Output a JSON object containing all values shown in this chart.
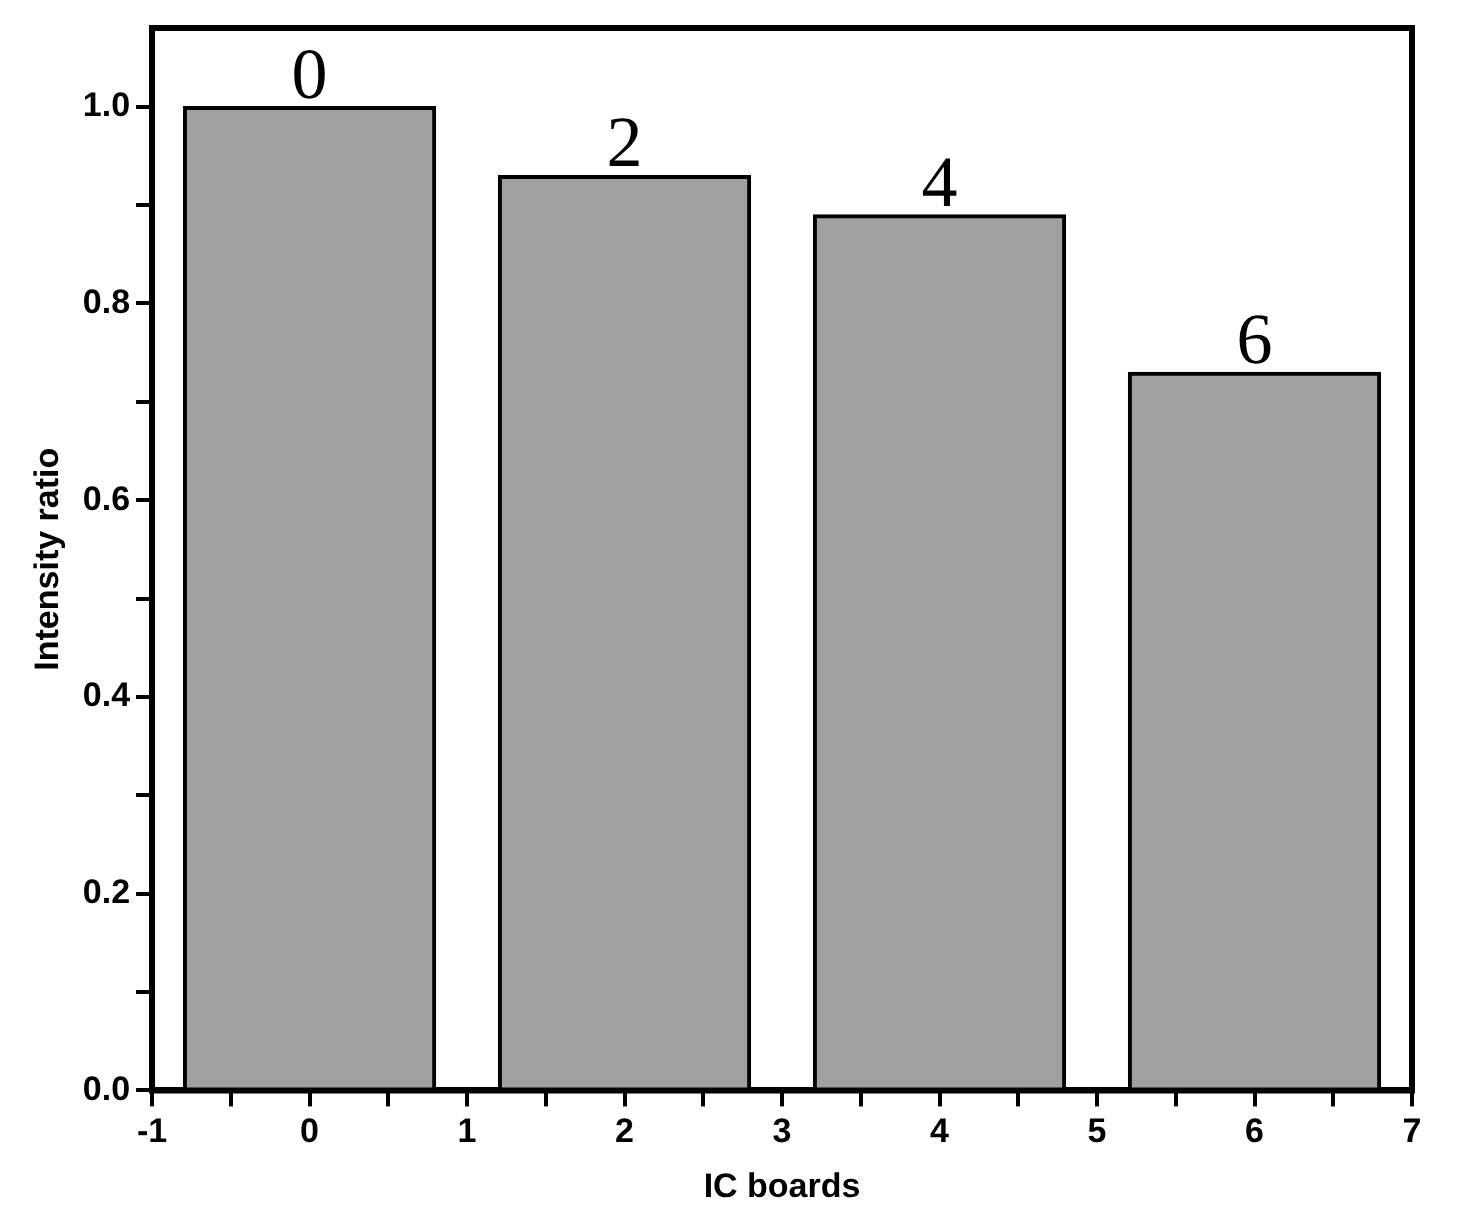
{
  "chart_data": {
    "type": "bar",
    "xlabel": "IC boards",
    "ylabel": "Intensity ratio",
    "x": [
      0,
      2,
      4,
      6
    ],
    "values": [
      1.0,
      0.93,
      0.89,
      0.73
    ],
    "color": "#a0a0a0",
    "xlim": [
      -1,
      7
    ],
    "xticks": [
      -1,
      {
        "value": -0.5,
        "label": null
      },
      0,
      {
        "value": 0.5,
        "label": null
      },
      1,
      {
        "value": 1.5,
        "label": null
      },
      2,
      {
        "value": 2.5,
        "label": null
      },
      3,
      {
        "value": 3.5,
        "label": null
      },
      4,
      {
        "value": 4.5,
        "label": null
      },
      5,
      {
        "value": 5.5,
        "label": null
      },
      6,
      {
        "value": 6.5,
        "label": null
      },
      7
    ],
    "ylim": [
      0,
      1.08
    ],
    "yticks": [
      {
        "value": 0,
        "label": "0.0"
      },
      {
        "value": 0.1,
        "label": null
      },
      0.2,
      {
        "value": 0.3,
        "label": null
      },
      0.4,
      {
        "value": 0.5,
        "label": null
      },
      0.6,
      {
        "value": 0.7,
        "label": null
      },
      0.8,
      {
        "value": 0.9,
        "label": null
      },
      {
        "value": 1,
        "label": "1.0"
      }
    ],
    "grid": false,
    "legend": false,
    "annotations": [
      {
        "text": "0",
        "x": 0,
        "y": 1.0
      },
      {
        "text": "2",
        "x": 2,
        "y": 0.93
      },
      {
        "text": "4",
        "x": 4,
        "y": 0.89
      },
      {
        "text": "6",
        "x": 6,
        "y": 0.73
      }
    ]
  }
}
